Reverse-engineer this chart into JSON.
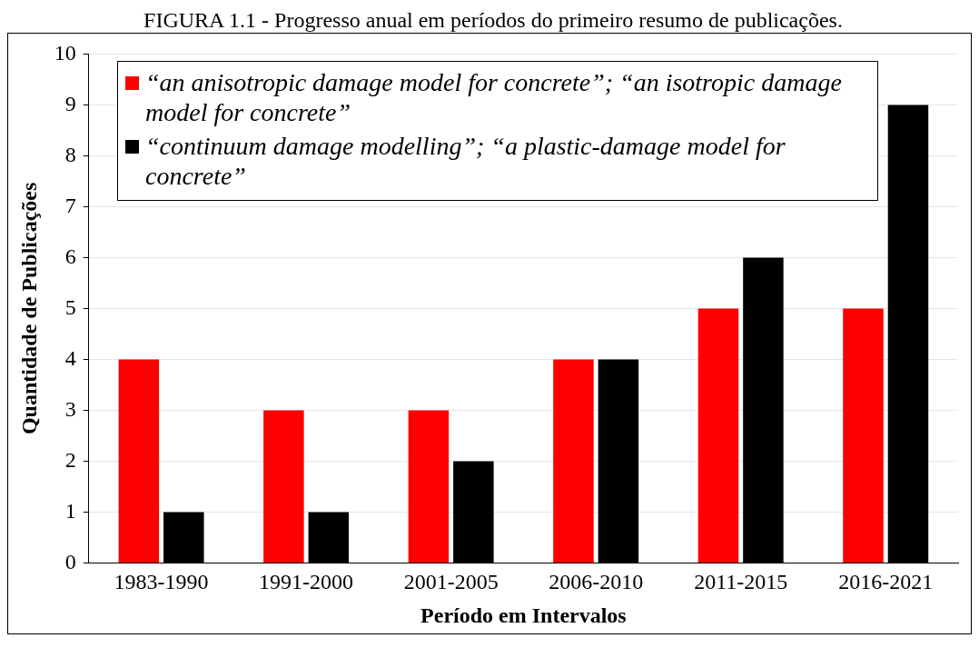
{
  "chart_data": {
    "type": "bar",
    "title": "FIGURA 1.1 - Progresso anual em períodos do primeiro resumo de publicações.",
    "xlabel": "Período em Intervalos",
    "ylabel": "Quantidade de Publicações",
    "categories": [
      "1983-1990",
      "1991-2000",
      "2001-2005",
      "2006-2010",
      "2011-2015",
      "2016-2021"
    ],
    "series": [
      {
        "name": "“an anisotropic damage model for concrete”; “an isotropic damage model for concrete”",
        "color": "#ff0000",
        "values": [
          4,
          3,
          3,
          4,
          5,
          5
        ]
      },
      {
        "name": "“continuum damage modelling”; “a plastic-damage model for concrete”",
        "color": "#000000",
        "values": [
          1,
          1,
          2,
          4,
          6,
          9
        ]
      }
    ],
    "ylim": [
      0,
      10
    ],
    "yticks": [
      0,
      1,
      2,
      3,
      4,
      5,
      6,
      7,
      8,
      9,
      10
    ],
    "grid": "y",
    "legend": "top left"
  }
}
